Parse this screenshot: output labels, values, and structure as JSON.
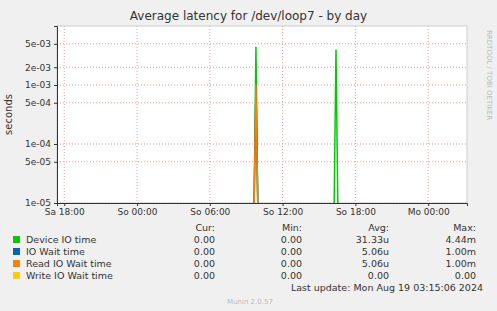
{
  "chart_data": {
    "type": "line",
    "title": "Average latency for /dev/loop7 - by day",
    "ylabel": "seconds",
    "log": "y",
    "grid": true,
    "xlim": [
      17.4,
      51.2
    ],
    "xticks": [
      {
        "value": 18,
        "label": "Sa 18:00"
      },
      {
        "value": 24,
        "label": "So 00:00"
      },
      {
        "value": 30,
        "label": "So 06:00"
      },
      {
        "value": 36,
        "label": "So 12:00"
      },
      {
        "value": 42,
        "label": "So 18:00"
      },
      {
        "value": 48,
        "label": "Mo 00:00"
      }
    ],
    "ylim": [
      1e-05,
      0.01
    ],
    "yticks": [
      {
        "value": 1e-05,
        "label": "1e-05"
      },
      {
        "value": 5e-05,
        "label": "5e-05"
      },
      {
        "value": 0.0001,
        "label": "1e-04"
      },
      {
        "value": 0.0005,
        "label": "5e-04"
      },
      {
        "value": 0.001,
        "label": "1e-03"
      },
      {
        "value": 0.002,
        "label": "2e-03"
      },
      {
        "value": 0.005,
        "label": "5e-03"
      }
    ],
    "x": [
      33.65,
      33.8,
      33.95,
      37,
      40.25,
      40.4,
      40.55
    ],
    "stats_headers": [
      "Cur:",
      "Min:",
      "Avg:",
      "Max:"
    ],
    "series": [
      {
        "name": "Device IO time",
        "color": "#00CC00",
        "values": [
          1e-05,
          0.00444,
          1e-05,
          null,
          1e-05,
          0.004,
          1e-05
        ],
        "cur": "0.00",
        "min": "0.00",
        "avg": "31.33u",
        "max": "4.44m"
      },
      {
        "name": "IO Wait time",
        "color": "#0066B3",
        "values": [
          1e-05,
          0.001,
          1e-05,
          null,
          null,
          null,
          null
        ],
        "cur": "0.00",
        "min": "0.00",
        "avg": "5.06u",
        "max": "1.00m"
      },
      {
        "name": "Read IO Wait time",
        "color": "#FF8000",
        "values": [
          1e-05,
          0.001,
          1e-05,
          null,
          null,
          null,
          null
        ],
        "cur": "0.00",
        "min": "0.00",
        "avg": "5.06u",
        "max": "1.00m"
      },
      {
        "name": "Write IO Wait time",
        "color": "#FFCC00",
        "values": [
          null,
          null,
          null,
          null,
          null,
          null,
          null
        ],
        "cur": "0.00",
        "min": "0.00",
        "avg": "0.00",
        "max": "0.00"
      }
    ],
    "last_update": "Last update: Mon Aug 19 03:15:06 2024",
    "credit": "Munin 2.0.57",
    "watermark": "RRDTOOL / TOBI OETIKER"
  }
}
